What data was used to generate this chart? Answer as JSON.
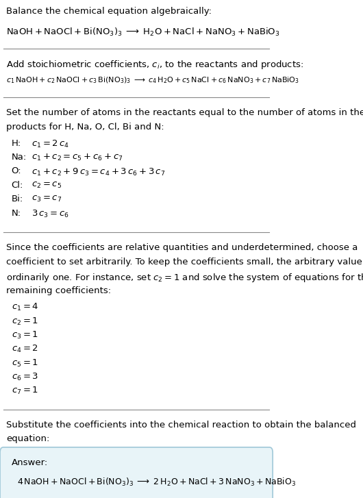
{
  "bg_color": "#ffffff",
  "text_color": "#000000",
  "answer_box_color": "#e8f4f8",
  "answer_box_edge": "#a0c8d8",
  "section1_title": "Balance the chemical equation algebraically:",
  "section2_title": "Add stoichiometric coefficients, $c_i$, to the reactants and products:",
  "section3_title": "Set the number of atoms in the reactants equal to the number of atoms in the\nproducts for H, Na, O, Cl, Bi and N:",
  "section4_title": "Since the coefficients are relative quantities and underdetermined, choose a\ncoefficient to set arbitrarily. To keep the coefficients small, the arbitrary value is\nordinarily one. For instance, set $c_2 = 1$ and solve the system of equations for the\nremaining coefficients:",
  "section5_title": "Substitute the coefficients into the chemical reaction to obtain the balanced\nequation:",
  "answer_label": "Answer:",
  "section3_rows": [
    [
      "H:",
      "$c_1 = 2\\,c_4$"
    ],
    [
      "Na:",
      "$c_1 + c_2 = c_5 + c_6 + c_7$"
    ],
    [
      "O:",
      "$c_1 + c_2 + 9\\,c_3 = c_4 + 3\\,c_6 + 3\\,c_7$"
    ],
    [
      "Cl:",
      "$c_2 = c_5$"
    ],
    [
      "Bi:",
      "$c_3 = c_7$"
    ],
    [
      "N:",
      "$3\\,c_3 = c_6$"
    ]
  ],
  "section4_rows": [
    "$c_1 = 4$",
    "$c_2 = 1$",
    "$c_3 = 1$",
    "$c_4 = 2$",
    "$c_5 = 1$",
    "$c_6 = 3$",
    "$c_7 = 1$"
  ]
}
